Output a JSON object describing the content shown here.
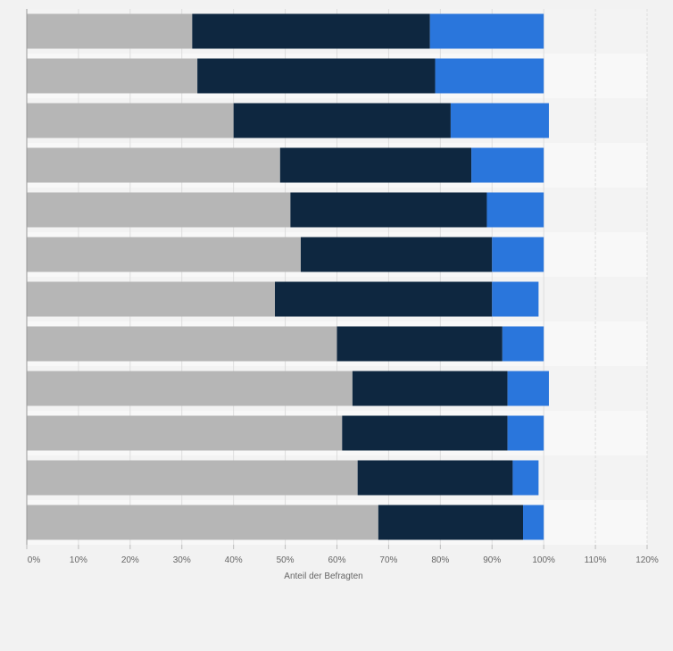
{
  "chart_data": {
    "type": "bar",
    "orientation": "horizontal",
    "stacked": true,
    "title": "",
    "xlabel": "Anteil der Befragten",
    "ylabel": "",
    "xlim": [
      0,
      120
    ],
    "x_ticks": [
      0,
      10,
      20,
      30,
      40,
      50,
      60,
      70,
      80,
      90,
      100,
      110,
      120
    ],
    "x_tick_labels": [
      "0%",
      "10%",
      "20%",
      "30%",
      "40%",
      "50%",
      "60%",
      "70%",
      "80%",
      "90%",
      "100%",
      "110%",
      "120%"
    ],
    "grid": true,
    "legend": "none",
    "category_count": 12,
    "series": [
      {
        "values": [
          32,
          33,
          40,
          49,
          51,
          53,
          48,
          60,
          63,
          61,
          64,
          68
        ],
        "color": "#b6b6b6"
      },
      {
        "values": [
          46,
          46,
          42,
          37,
          38,
          37,
          42,
          32,
          30,
          32,
          30,
          28
        ],
        "color": "#0e2740"
      },
      {
        "values": [
          22,
          21,
          19,
          14,
          11,
          10,
          9,
          8,
          8,
          7,
          5,
          4
        ],
        "color": "#2a76dc"
      }
    ]
  }
}
